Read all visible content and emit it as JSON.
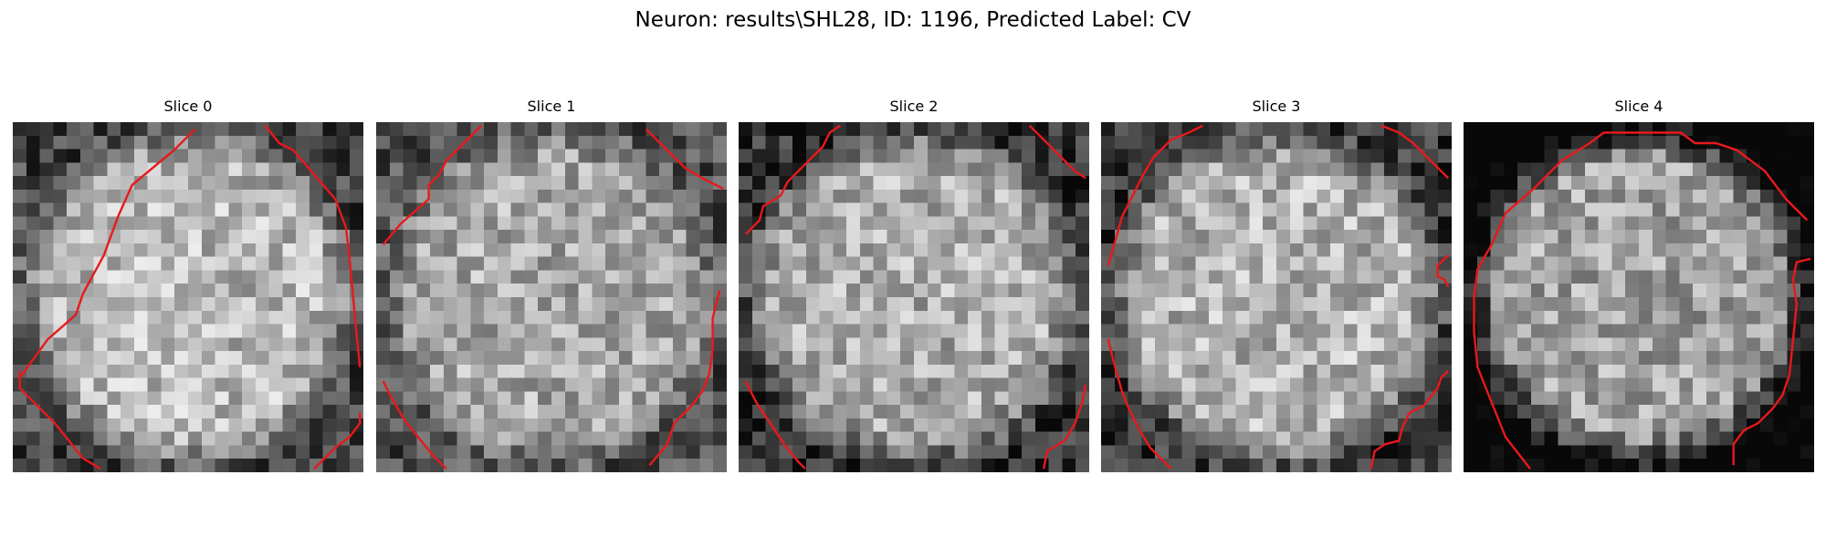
{
  "figure": {
    "title": "Neuron: results\\SHL28, ID: 1196, Predicted Label: CV"
  },
  "panels": [
    {
      "title": "Slice 0",
      "seed": 11,
      "center_brightness": 0.72,
      "edge_darkness": 0.45,
      "contours": [
        [
          [
            0.02,
            0.73
          ],
          [
            0.1,
            0.62
          ],
          [
            0.18,
            0.55
          ],
          [
            0.2,
            0.49
          ],
          [
            0.26,
            0.38
          ],
          [
            0.3,
            0.27
          ],
          [
            0.34,
            0.18
          ],
          [
            0.46,
            0.08
          ],
          [
            0.52,
            0.02
          ]
        ],
        [
          [
            0.72,
            0.01
          ],
          [
            0.76,
            0.06
          ],
          [
            0.8,
            0.08
          ],
          [
            0.92,
            0.22
          ],
          [
            0.95,
            0.3
          ],
          [
            0.96,
            0.38
          ],
          [
            0.98,
            0.6
          ],
          [
            0.99,
            0.7
          ]
        ],
        [
          [
            0.02,
            0.71
          ],
          [
            0.02,
            0.76
          ],
          [
            0.08,
            0.82
          ],
          [
            0.12,
            0.86
          ],
          [
            0.2,
            0.96
          ],
          [
            0.25,
            0.99
          ]
        ],
        [
          [
            0.86,
            0.99
          ],
          [
            0.92,
            0.93
          ],
          [
            0.96,
            0.9
          ],
          [
            0.99,
            0.86
          ],
          [
            0.99,
            0.83
          ]
        ]
      ]
    },
    {
      "title": "Slice 1",
      "seed": 23,
      "center_brightness": 0.66,
      "edge_darkness": 0.35,
      "contours": [
        [
          [
            0.02,
            0.35
          ],
          [
            0.07,
            0.29
          ],
          [
            0.15,
            0.22
          ],
          [
            0.15,
            0.18
          ],
          [
            0.18,
            0.15
          ],
          [
            0.2,
            0.11
          ],
          [
            0.24,
            0.07
          ],
          [
            0.27,
            0.04
          ],
          [
            0.3,
            0.01
          ]
        ],
        [
          [
            0.77,
            0.02
          ],
          [
            0.82,
            0.07
          ],
          [
            0.88,
            0.13
          ],
          [
            0.93,
            0.16
          ],
          [
            0.99,
            0.19
          ]
        ],
        [
          [
            0.02,
            0.74
          ],
          [
            0.04,
            0.78
          ],
          [
            0.08,
            0.85
          ],
          [
            0.12,
            0.9
          ],
          [
            0.16,
            0.95
          ],
          [
            0.2,
            0.99
          ]
        ],
        [
          [
            0.78,
            0.98
          ],
          [
            0.83,
            0.92
          ],
          [
            0.85,
            0.86
          ],
          [
            0.9,
            0.81
          ],
          [
            0.93,
            0.77
          ],
          [
            0.95,
            0.72
          ],
          [
            0.96,
            0.65
          ],
          [
            0.96,
            0.56
          ],
          [
            0.98,
            0.48
          ]
        ]
      ]
    },
    {
      "title": "Slice 2",
      "seed": 37,
      "center_brightness": 0.68,
      "edge_darkness": 0.5,
      "contours": [
        [
          [
            0.02,
            0.32
          ],
          [
            0.06,
            0.28
          ],
          [
            0.07,
            0.24
          ],
          [
            0.12,
            0.21
          ],
          [
            0.14,
            0.17
          ],
          [
            0.2,
            0.11
          ],
          [
            0.24,
            0.07
          ],
          [
            0.26,
            0.03
          ],
          [
            0.29,
            0.01
          ]
        ],
        [
          [
            0.83,
            0.01
          ],
          [
            0.9,
            0.08
          ],
          [
            0.96,
            0.14
          ],
          [
            0.99,
            0.16
          ]
        ],
        [
          [
            0.02,
            0.74
          ],
          [
            0.05,
            0.8
          ],
          [
            0.09,
            0.86
          ],
          [
            0.13,
            0.92
          ],
          [
            0.17,
            0.97
          ],
          [
            0.19,
            0.99
          ]
        ],
        [
          [
            0.87,
            0.99
          ],
          [
            0.88,
            0.94
          ],
          [
            0.93,
            0.91
          ],
          [
            0.96,
            0.86
          ],
          [
            0.98,
            0.8
          ],
          [
            0.99,
            0.75
          ]
        ]
      ]
    },
    {
      "title": "Slice 3",
      "seed": 51,
      "center_brightness": 0.7,
      "edge_darkness": 0.5,
      "contours": [
        [
          [
            0.02,
            0.41
          ],
          [
            0.04,
            0.34
          ],
          [
            0.06,
            0.27
          ],
          [
            0.09,
            0.21
          ],
          [
            0.12,
            0.15
          ],
          [
            0.15,
            0.1
          ],
          [
            0.2,
            0.05
          ],
          [
            0.25,
            0.03
          ],
          [
            0.29,
            0.01
          ]
        ],
        [
          [
            0.8,
            0.01
          ],
          [
            0.85,
            0.03
          ],
          [
            0.89,
            0.06
          ],
          [
            0.95,
            0.12
          ],
          [
            0.99,
            0.16
          ]
        ],
        [
          [
            0.99,
            0.38
          ],
          [
            0.96,
            0.41
          ],
          [
            0.96,
            0.44
          ],
          [
            0.98,
            0.45
          ],
          [
            0.99,
            0.47
          ]
        ],
        [
          [
            0.02,
            0.62
          ],
          [
            0.04,
            0.7
          ],
          [
            0.06,
            0.77
          ],
          [
            0.08,
            0.82
          ],
          [
            0.11,
            0.88
          ],
          [
            0.14,
            0.93
          ],
          [
            0.18,
            0.97
          ],
          [
            0.2,
            0.99
          ]
        ],
        [
          [
            0.77,
            0.99
          ],
          [
            0.78,
            0.94
          ],
          [
            0.81,
            0.92
          ],
          [
            0.85,
            0.91
          ],
          [
            0.86,
            0.87
          ],
          [
            0.88,
            0.83
          ],
          [
            0.92,
            0.81
          ],
          [
            0.96,
            0.76
          ],
          [
            0.97,
            0.73
          ],
          [
            0.99,
            0.71
          ]
        ]
      ]
    },
    {
      "title": "Slice 4",
      "seed": 67,
      "center_brightness": 0.64,
      "edge_darkness": 0.75,
      "contours": [
        [
          [
            0.19,
            0.99
          ],
          [
            0.12,
            0.9
          ],
          [
            0.08,
            0.8
          ],
          [
            0.04,
            0.7
          ],
          [
            0.03,
            0.6
          ],
          [
            0.03,
            0.5
          ],
          [
            0.04,
            0.42
          ],
          [
            0.08,
            0.35
          ],
          [
            0.12,
            0.26
          ],
          [
            0.2,
            0.19
          ],
          [
            0.28,
            0.11
          ],
          [
            0.36,
            0.06
          ],
          [
            0.4,
            0.03
          ],
          [
            0.46,
            0.03
          ],
          [
            0.62,
            0.03
          ],
          [
            0.66,
            0.06
          ],
          [
            0.72,
            0.06
          ],
          [
            0.78,
            0.08
          ],
          [
            0.86,
            0.14
          ],
          [
            0.92,
            0.22
          ],
          [
            0.98,
            0.28
          ]
        ],
        [
          [
            0.99,
            0.39
          ],
          [
            0.95,
            0.4
          ],
          [
            0.94,
            0.45
          ],
          [
            0.95,
            0.52
          ],
          [
            0.94,
            0.62
          ],
          [
            0.93,
            0.72
          ],
          [
            0.91,
            0.78
          ],
          [
            0.88,
            0.82
          ],
          [
            0.84,
            0.86
          ],
          [
            0.8,
            0.88
          ],
          [
            0.77,
            0.92
          ],
          [
            0.77,
            0.98
          ]
        ]
      ]
    }
  ]
}
